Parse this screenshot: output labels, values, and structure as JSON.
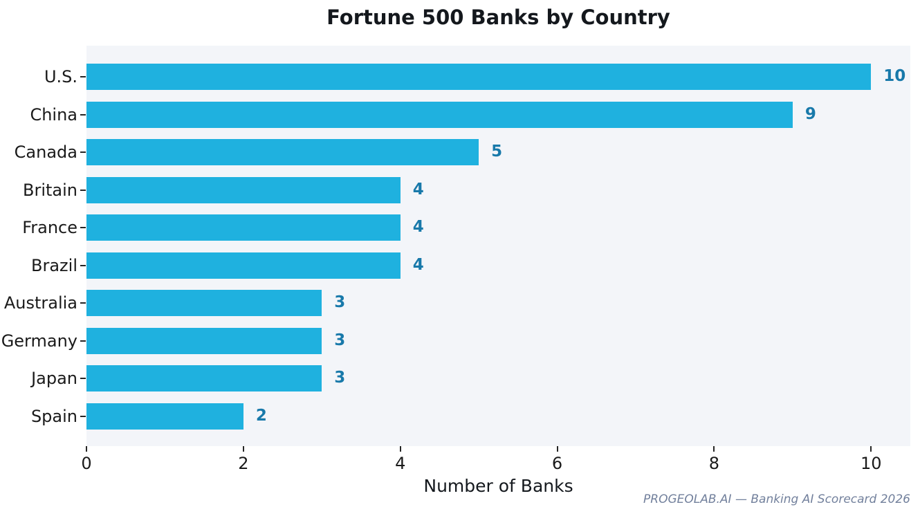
{
  "title": "Fortune 500 Banks by Country",
  "watermark": "PROGEOLAB.AI — Banking AI Scorecard 2026",
  "chart_data": {
    "type": "bar",
    "orientation": "horizontal",
    "title": "Fortune 500 Banks by Country",
    "xlabel": "Number of Banks",
    "ylabel": "",
    "categories": [
      "U.S.",
      "China",
      "Canada",
      "Britain",
      "France",
      "Brazil",
      "Australia",
      "Germany",
      "Japan",
      "Spain"
    ],
    "values": [
      10,
      9,
      5,
      4,
      4,
      4,
      3,
      3,
      3,
      2
    ],
    "value_labels": [
      "10",
      "9",
      "5",
      "4",
      "4",
      "4",
      "3",
      "3",
      "3",
      "2"
    ],
    "xlim": [
      0,
      10.5
    ],
    "xticks": [
      0,
      2,
      4,
      6,
      8,
      10
    ],
    "grid": false,
    "legend": "none",
    "bar_color": "#1fb1df",
    "value_label_color": "#1879aa",
    "plot_background": "#f3f5f9",
    "figure_background": "#ffffff"
  }
}
